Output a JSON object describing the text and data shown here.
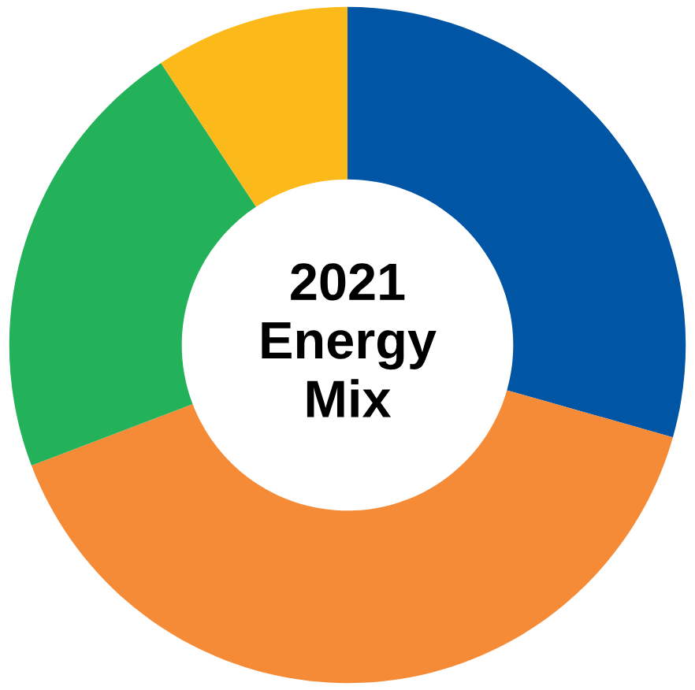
{
  "chart_data": {
    "type": "donut",
    "title": "2021\nEnergy\nMix",
    "categories": [
      null,
      null,
      null,
      null
    ],
    "values": [
      29.4,
      39.8,
      21.5,
      9.3
    ],
    "colors": [
      "#0055a5",
      "#f58b37",
      "#23b25a",
      "#fbb91a"
    ],
    "legend": false
  }
}
